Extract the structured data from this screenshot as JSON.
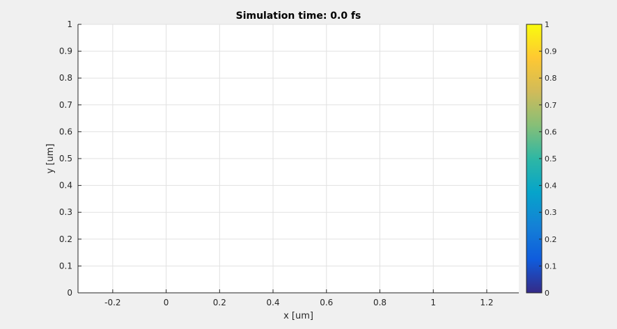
{
  "chart_data": {
    "type": "heatmap",
    "title": "Simulation time: 0.0 fs",
    "xlabel": "x [um]",
    "ylabel": "y [um]",
    "xlim": [
      -0.33,
      1.32
    ],
    "ylim": [
      0,
      1
    ],
    "x_ticks": [
      -0.2,
      0,
      0.2,
      0.4,
      0.6,
      0.8,
      1,
      1.2
    ],
    "x_tick_labels": [
      "-0.2",
      "0",
      "0.2",
      "0.4",
      "0.6",
      "0.8",
      "1",
      "1.2"
    ],
    "y_ticks": [
      0,
      0.1,
      0.2,
      0.3,
      0.4,
      0.5,
      0.6,
      0.7,
      0.8,
      0.9,
      1
    ],
    "y_tick_labels": [
      "0",
      "0.1",
      "0.2",
      "0.3",
      "0.4",
      "0.5",
      "0.6",
      "0.7",
      "0.8",
      "0.9",
      "1"
    ],
    "grid": true,
    "values": [],
    "colorbar": {
      "colormap": "parula",
      "range": [
        0,
        1
      ],
      "ticks": [
        0,
        0.1,
        0.2,
        0.3,
        0.4,
        0.5,
        0.6,
        0.7,
        0.8,
        0.9,
        1
      ],
      "tick_labels": [
        "0",
        "0.1",
        "0.2",
        "0.3",
        "0.4",
        "0.5",
        "0.6",
        "0.7",
        "0.8",
        "0.9",
        "1"
      ],
      "location": "right",
      "colors": [
        "#352a87",
        "#0f5cdd",
        "#1481d6",
        "#06a4ca",
        "#2eb7a4",
        "#87bf77",
        "#d1bb59",
        "#fec832",
        "#f9fb0e"
      ]
    }
  },
  "colors": {
    "figure_background": "#f0f0f0",
    "axes_background": "#ffffff",
    "grid": "#e1e1e1",
    "axis": "#262626"
  }
}
